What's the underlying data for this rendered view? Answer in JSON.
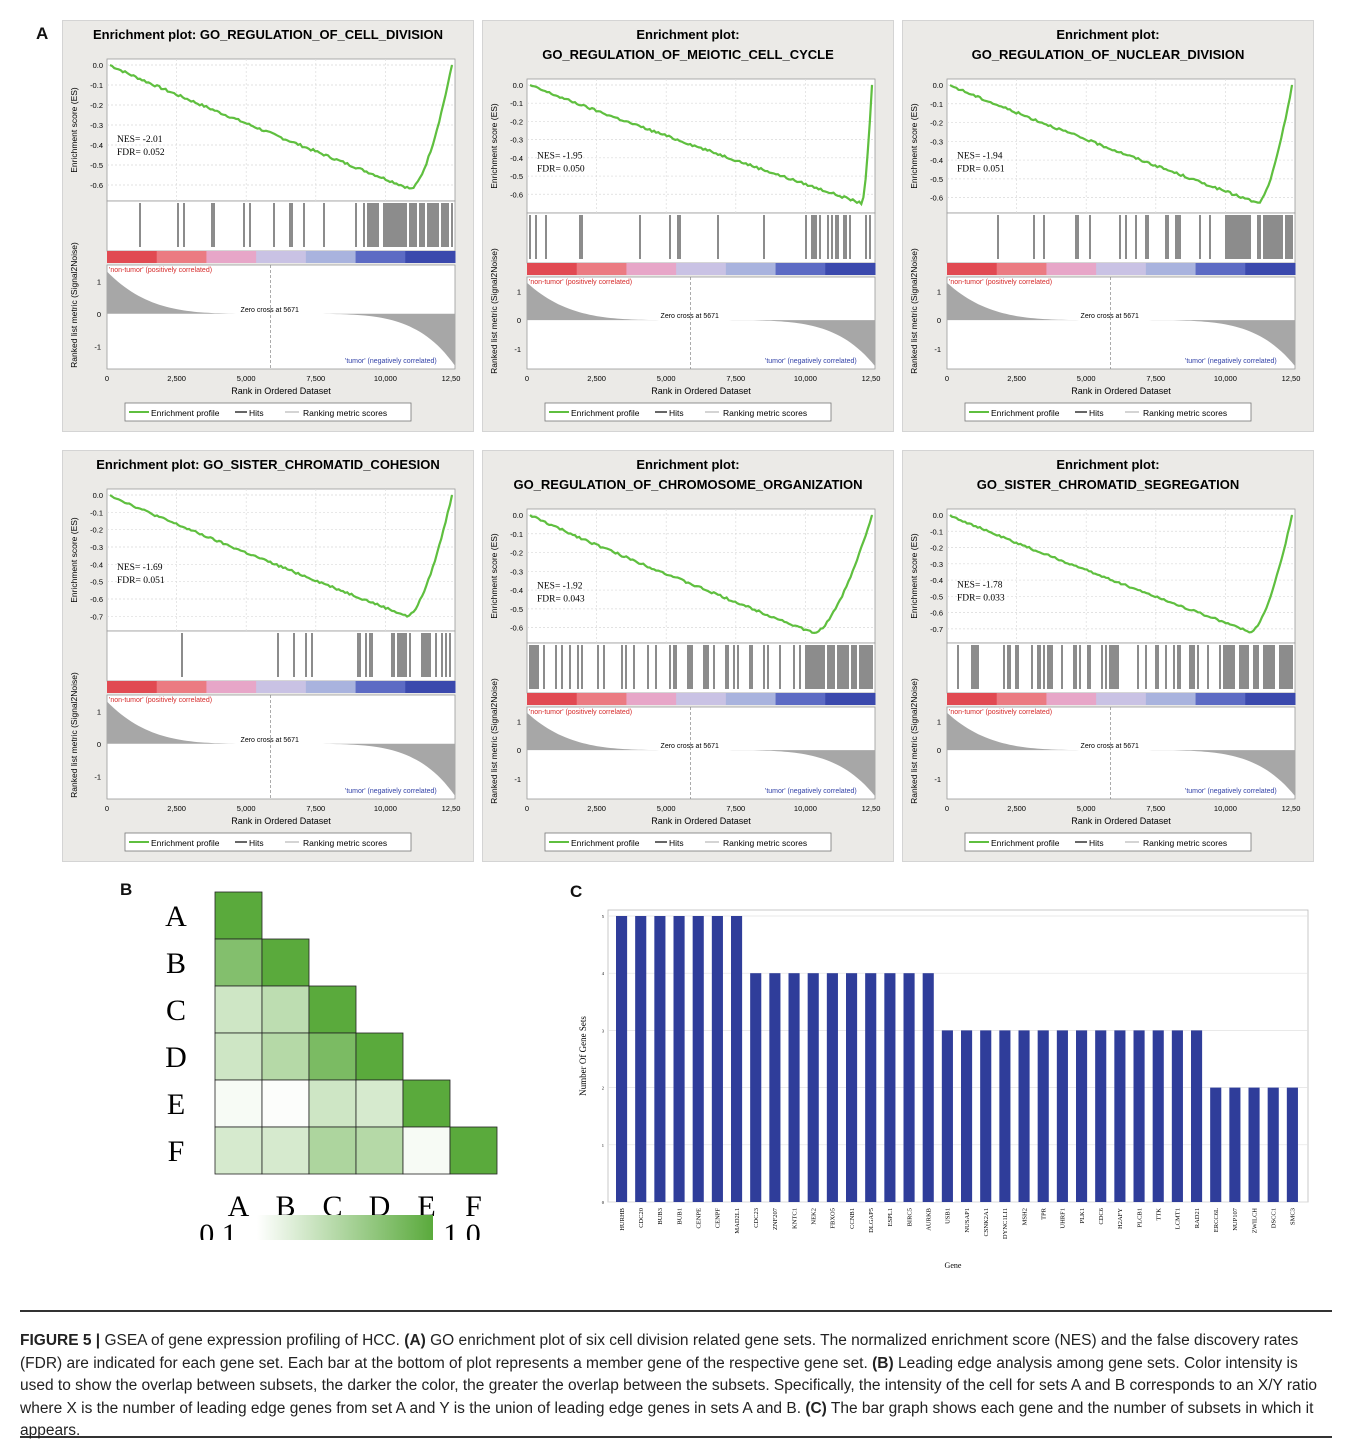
{
  "figure": {
    "panel_a_letter": "A",
    "panel_b_letter": "B",
    "panel_c_letter": "C"
  },
  "gsea_plots": [
    {
      "title_line1": "Enrichment plot: GO_REGULATION_OF_CELL_DIVISION",
      "title_line2": "",
      "nes": "NES= -2.01",
      "fdr": "FDR= 0.052",
      "es_ticks": [
        "0.0",
        "-0.1",
        "-0.2",
        "-0.3",
        "-0.4",
        "-0.5",
        "-0.6"
      ],
      "es_min": -0.65,
      "curve_depth": -0.62,
      "curve_minpos": 0.88,
      "hits_density": "high-right"
    },
    {
      "title_line1": "Enrichment plot:",
      "title_line2": "GO_REGULATION_OF_MEIOTIC_CELL_CYCLE",
      "nes": "NES= -1.95",
      "fdr": "FDR= 0.050",
      "es_ticks": [
        "0.0",
        "-0.1",
        "-0.2",
        "-0.3",
        "-0.4",
        "-0.5",
        "-0.6"
      ],
      "es_min": -0.67,
      "curve_depth": -0.65,
      "curve_minpos": 0.97,
      "hits_density": "sparse"
    },
    {
      "title_line1": "Enrichment plot:",
      "title_line2": "GO_REGULATION_OF_NUCLEAR_DIVISION",
      "nes": "NES= -1.94",
      "fdr": "FDR= 0.051",
      "es_ticks": [
        "0.0",
        "-0.1",
        "-0.2",
        "-0.3",
        "-0.4",
        "-0.5",
        "-0.6"
      ],
      "es_min": -0.65,
      "curve_depth": -0.63,
      "curve_minpos": 0.9,
      "hits_density": "high-right"
    },
    {
      "title_line1": "Enrichment plot: GO_SISTER_CHROMATID_COHESION",
      "title_line2": "",
      "nes": "NES= -1.69",
      "fdr": "FDR= 0.051",
      "es_ticks": [
        "0.0",
        "-0.1",
        "-0.2",
        "-0.3",
        "-0.4",
        "-0.5",
        "-0.6",
        "-0.7"
      ],
      "es_min": -0.75,
      "curve_depth": -0.7,
      "curve_minpos": 0.87,
      "hits_density": "medium"
    },
    {
      "title_line1": "Enrichment plot:",
      "title_line2": "GO_REGULATION_OF_CHROMOSOME_ORGANIZATION",
      "nes": "NES= -1.92",
      "fdr": "FDR= 0.043",
      "es_ticks": [
        "0.0",
        "-0.1",
        "-0.2",
        "-0.3",
        "-0.4",
        "-0.5",
        "-0.6"
      ],
      "es_min": -0.65,
      "curve_depth": -0.63,
      "curve_minpos": 0.83,
      "hits_density": "dense"
    },
    {
      "title_line1": "Enrichment plot:",
      "title_line2": "GO_SISTER_CHROMATID_SEGREGATION",
      "nes": "NES= -1.78",
      "fdr": "FDR= 0.033",
      "es_ticks": [
        "0.0",
        "-0.1",
        "-0.2",
        "-0.3",
        "-0.4",
        "-0.5",
        "-0.6",
        "-0.7"
      ],
      "es_min": -0.75,
      "curve_depth": -0.72,
      "curve_minpos": 0.88,
      "hits_density": "dense"
    }
  ],
  "gsea_common": {
    "es_axis_label": "Enrichment score (ES)",
    "rank_axis_label": "Ranked list metric (Signal2Noise)",
    "x_axis_label": "Rank in Ordered Dataset",
    "x_ticks": [
      "0",
      "2,500",
      "5,000",
      "7,500",
      "10,000",
      "12,50"
    ],
    "rank_ticks": [
      "1",
      "0",
      "-1"
    ],
    "pos_label": "'non-tumor' (positively correlated)",
    "neg_label": "'tumor' (negatively correlated)",
    "zero_cross": "Zero cross at 5671",
    "legend": [
      "Enrichment profile",
      "Hits",
      "Ranking metric scores"
    ],
    "colors": {
      "curve": "#5fbf3f",
      "pos": "#e0525a",
      "neg": "#4050b0",
      "grey": "#a7a7a7"
    }
  },
  "heatmap": {
    "labels": [
      "A",
      "B",
      "C",
      "D",
      "E",
      "F"
    ],
    "matrix": [
      [
        1.0
      ],
      [
        0.75,
        1.0
      ],
      [
        0.3,
        0.4,
        1.0
      ],
      [
        0.3,
        0.45,
        0.8,
        1.0
      ],
      [
        0.05,
        0.02,
        0.3,
        0.25,
        1.0
      ],
      [
        0.25,
        0.25,
        0.5,
        0.45,
        0.05,
        1.0
      ]
    ],
    "scale_min": "0.1",
    "scale_max": "1.0",
    "color": "#5aaa3c"
  },
  "chart_data": {
    "type": "bar",
    "xlabel": "Gene",
    "ylabel": "Number Of Gene Sets",
    "ylim": [
      0,
      5
    ],
    "categories": [
      "HURHB",
      "CDC20",
      "BUB3",
      "BUB1",
      "CENPE",
      "CENPF",
      "MAD2L1",
      "CDC23",
      "ZNF207",
      "KNTC1",
      "NEK2",
      "FBXO5",
      "CCNB1",
      "DLGAP5",
      "ESPL1",
      "BIRC5",
      "AURKB",
      "USB1",
      "NUSAP1",
      "CSNK2A1",
      "DYNC1LI1",
      "MSH2",
      "TPR",
      "UHRF1",
      "PLK1",
      "CDC6",
      "H2AFY",
      "PLCB1",
      "TTK",
      "LCMT1",
      "RAD21",
      "ERCC6L",
      "NUP107",
      "ZWILCH",
      "DSCC1",
      "SMC3"
    ],
    "values": [
      5,
      5,
      5,
      5,
      5,
      5,
      5,
      4,
      4,
      4,
      4,
      4,
      4,
      4,
      4,
      4,
      4,
      3,
      3,
      3,
      3,
      3,
      3,
      3,
      3,
      3,
      3,
      3,
      3,
      3,
      3,
      2,
      2,
      2,
      2,
      2
    ],
    "bar_color": "#2f3d9a"
  },
  "caption": {
    "label": "FIGURE 5 |",
    "text1": " GSEA of gene expression profiling of HCC. ",
    "a": "(A)",
    "text2": " GO enrichment plot of six cell division related gene sets. The normalized enrichment score (NES) and the false discovery rates (FDR) are indicated for each gene set. Each bar at the bottom of plot represents a member gene of the respective gene set. ",
    "b": "(B)",
    "text3": " Leading edge analysis among gene sets. Color intensity is used to show the overlap between subsets, the darker the color, the greater the overlap between the subsets. Specifically, the intensity of the cell for sets A and B corresponds to an X/Y ratio where X is the number of leading edge genes from set A and Y is the union of leading edge genes in sets A and B. ",
    "c": "(C)",
    "text4": " The bar graph shows each gene and the number of subsets in which it appears."
  }
}
